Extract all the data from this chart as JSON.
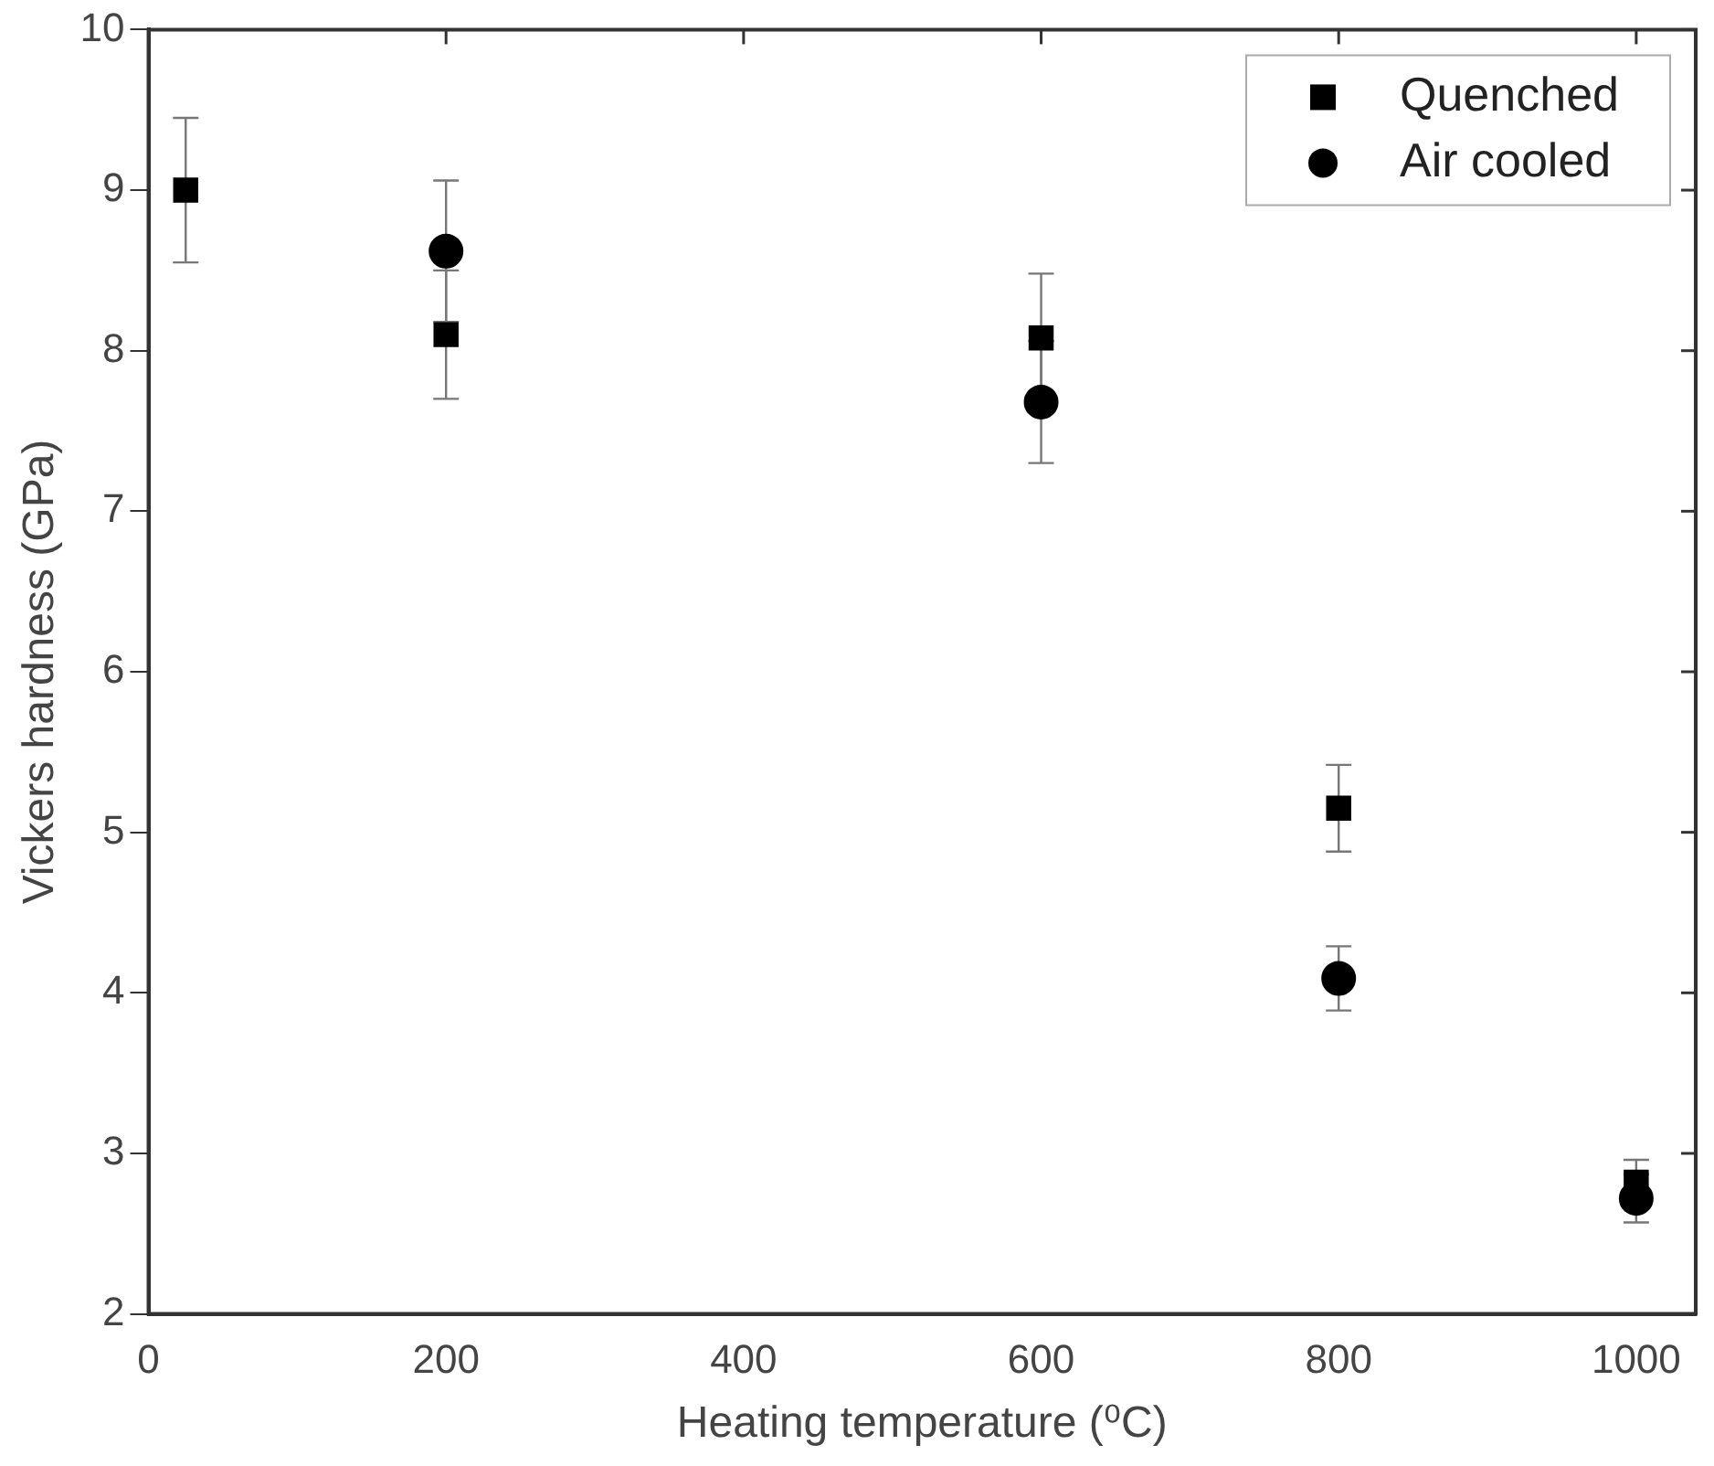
{
  "chart_data": {
    "type": "scatter",
    "xlabel": "Heating temperature (⁰C)",
    "ylabel": "Vickers hardness (GPa)",
    "xlim": [
      0,
      1040
    ],
    "xticks": [
      0,
      200,
      400,
      600,
      800,
      1000
    ],
    "ylim": [
      2,
      10
    ],
    "yticks": [
      2,
      3,
      4,
      5,
      6,
      7,
      8,
      9,
      10
    ],
    "grid": false,
    "legend": "top right",
    "series": [
      {
        "name": "Quenched",
        "color": "#000000",
        "marker": "square",
        "x": [
          25,
          200,
          600,
          800,
          1000
        ],
        "values": [
          9.0,
          8.1,
          8.08,
          5.15,
          2.82
        ],
        "errors": [
          0.45,
          0.4,
          0.4,
          0.27,
          0.14
        ]
      },
      {
        "name": "Air cooled",
        "color": "#000000",
        "marker": "circle",
        "x": [
          200,
          600,
          800,
          1000
        ],
        "values": [
          8.62,
          7.68,
          4.09,
          2.72
        ],
        "errors": [
          0.44,
          0.38,
          0.2,
          0.15
        ]
      }
    ]
  }
}
